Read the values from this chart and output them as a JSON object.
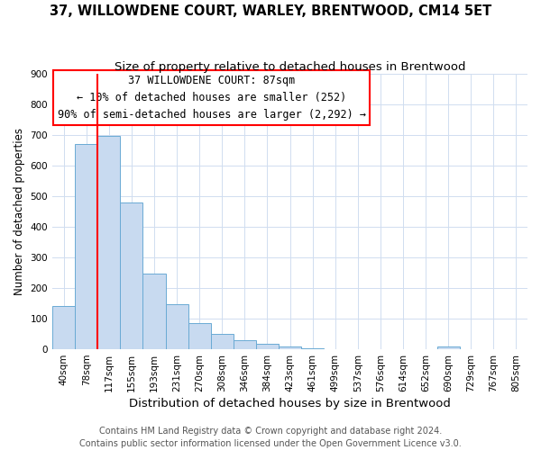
{
  "title": "37, WILLOWDENE COURT, WARLEY, BRENTWOOD, CM14 5ET",
  "subtitle": "Size of property relative to detached houses in Brentwood",
  "xlabel": "Distribution of detached houses by size in Brentwood",
  "ylabel": "Number of detached properties",
  "footer_line1": "Contains HM Land Registry data © Crown copyright and database right 2024.",
  "footer_line2": "Contains public sector information licensed under the Open Government Licence v3.0.",
  "bar_labels": [
    "40sqm",
    "78sqm",
    "117sqm",
    "155sqm",
    "193sqm",
    "231sqm",
    "270sqm",
    "308sqm",
    "346sqm",
    "384sqm",
    "423sqm",
    "461sqm",
    "499sqm",
    "537sqm",
    "576sqm",
    "614sqm",
    "652sqm",
    "690sqm",
    "729sqm",
    "767sqm",
    "805sqm"
  ],
  "bar_values": [
    140,
    670,
    695,
    480,
    248,
    148,
    85,
    50,
    30,
    18,
    10,
    4,
    1,
    0,
    0,
    0,
    0,
    8,
    0,
    0,
    0
  ],
  "bar_color": "#c8daf0",
  "bar_edge_color": "#6aaad4",
  "annotation_line1": "37 WILLOWDENE COURT: 87sqm",
  "annotation_line2": "← 10% of detached houses are smaller (252)",
  "annotation_line3": "90% of semi-detached houses are larger (2,292) →",
  "red_line_bar_index": 1,
  "ylim": [
    0,
    900
  ],
  "yticks": [
    0,
    100,
    200,
    300,
    400,
    500,
    600,
    700,
    800,
    900
  ],
  "title_fontsize": 10.5,
  "subtitle_fontsize": 9.5,
  "xlabel_fontsize": 9.5,
  "ylabel_fontsize": 8.5,
  "tick_fontsize": 7.5,
  "annotation_fontsize": 8.5,
  "footer_fontsize": 7
}
